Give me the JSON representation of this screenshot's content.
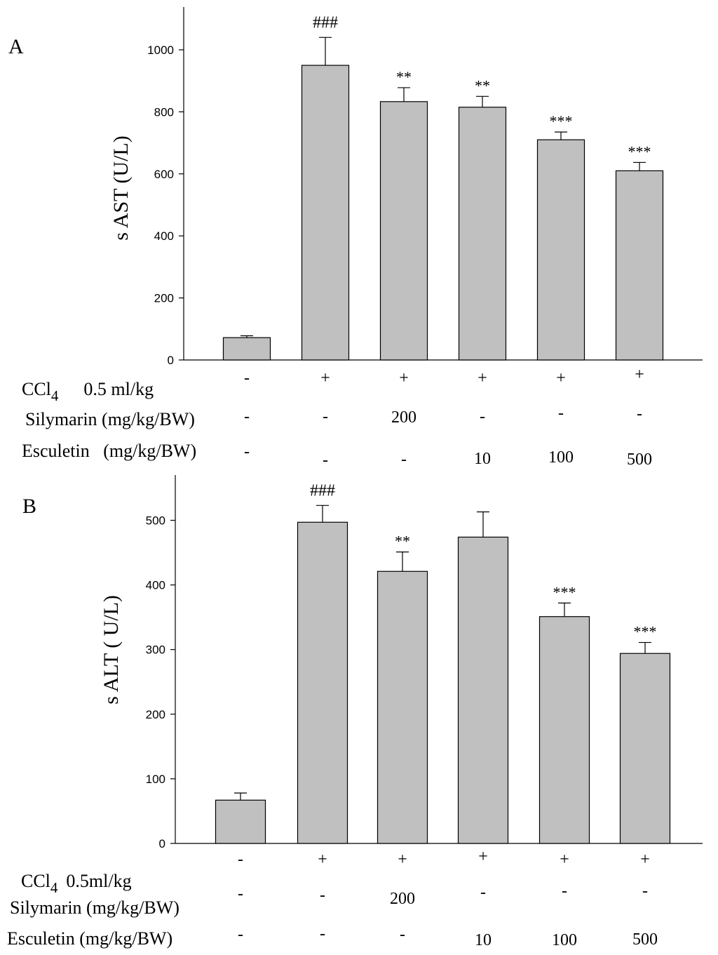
{
  "chart_data": [
    {
      "type": "bar",
      "panel_label": "A",
      "ylabel": "s AST (U/L)",
      "ylim": [
        0,
        1150
      ],
      "yticks": [
        0,
        200,
        400,
        600,
        800,
        1000
      ],
      "values": [
        72,
        950,
        833,
        815,
        710,
        610
      ],
      "errors": [
        6,
        90,
        45,
        35,
        25,
        27
      ],
      "annotations": [
        "",
        "###",
        "**",
        "**",
        "***",
        "***"
      ],
      "bar_color": "#c0c0c0",
      "grid": false,
      "treatments": [
        {
          "label": "CCl",
          "subscript": "4",
          "suffix": "0.5 ml/kg",
          "values": [
            "-",
            "+",
            "+",
            "+",
            "+",
            "+"
          ]
        },
        {
          "label": "Silymarin (mg/kg/BW)",
          "values": [
            "-",
            "-",
            "200",
            "-",
            "-",
            "-"
          ]
        },
        {
          "label": "Esculetin   (mg/kg/BW)",
          "values": [
            "-",
            "-",
            "-",
            "10",
            "100",
            "500"
          ]
        }
      ]
    },
    {
      "type": "bar",
      "panel_label": "B",
      "ylabel": "s ALT ( U/L)",
      "ylim": [
        0,
        580
      ],
      "yticks": [
        0,
        100,
        200,
        300,
        400,
        500
      ],
      "values": [
        67,
        497,
        421,
        474,
        351,
        294
      ],
      "errors": [
        11,
        26,
        30,
        39,
        21,
        17
      ],
      "annotations": [
        "",
        "###",
        "**",
        "",
        "***",
        "***"
      ],
      "bar_color": "#c0c0c0",
      "grid": false,
      "treatments": [
        {
          "label": "CCl",
          "subscript": "4",
          "suffix": "0.5ml/kg",
          "values": [
            "-",
            "+",
            "+",
            "+",
            "+",
            "+"
          ]
        },
        {
          "label": "Silymarin (mg/kg/BW)",
          "values": [
            "-",
            "-",
            "200",
            "-",
            "-",
            "-"
          ]
        },
        {
          "label": "Esculetin (mg/kg/BW)",
          "values": [
            "-",
            "-",
            "-",
            "10",
            "100",
            "500"
          ]
        }
      ]
    }
  ]
}
